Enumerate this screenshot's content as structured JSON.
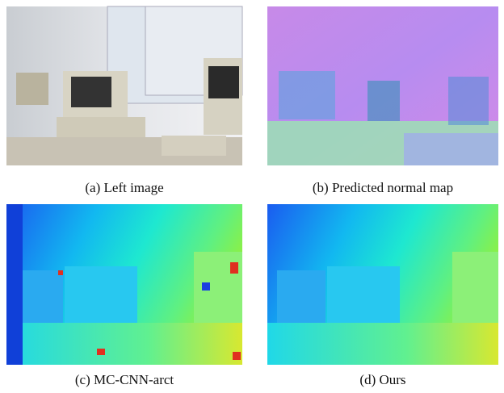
{
  "figure": {
    "panels": [
      {
        "caption": "(a) Left image"
      },
      {
        "caption": "(b) Predicted normal map"
      },
      {
        "caption": "(c) MC-CNN-arct"
      },
      {
        "caption": "(d) Ours"
      }
    ]
  }
}
